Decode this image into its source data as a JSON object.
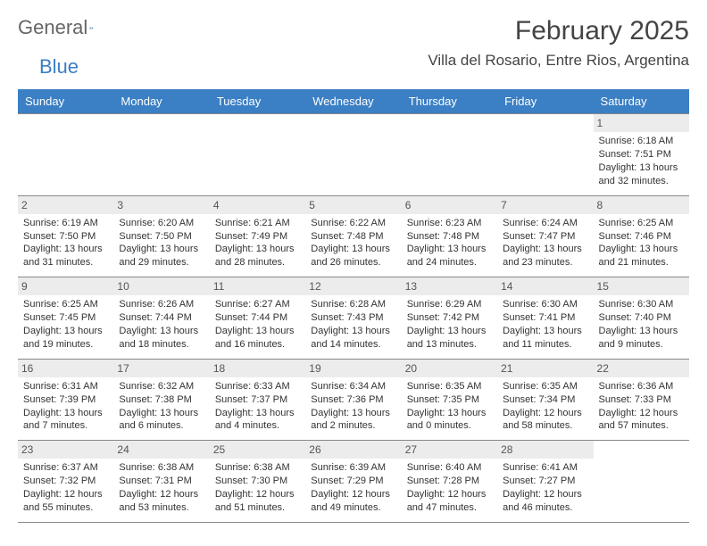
{
  "brand": {
    "name1": "General",
    "name2": "Blue",
    "accent": "#3b7fc4",
    "text_color": "#666"
  },
  "title": "February 2025",
  "location": "Villa del Rosario, Entre Rios, Argentina",
  "header_bg": "#3b7fc4",
  "daynum_bg": "#ececec",
  "border_color": "#888888",
  "dow": [
    "Sunday",
    "Monday",
    "Tuesday",
    "Wednesday",
    "Thursday",
    "Friday",
    "Saturday"
  ],
  "weeks": [
    [
      {
        "n": "",
        "empty": true
      },
      {
        "n": "",
        "empty": true
      },
      {
        "n": "",
        "empty": true
      },
      {
        "n": "",
        "empty": true
      },
      {
        "n": "",
        "empty": true
      },
      {
        "n": "",
        "empty": true
      },
      {
        "n": "1",
        "sr": "Sunrise: 6:18 AM",
        "ss": "Sunset: 7:51 PM",
        "dl": "Daylight: 13 hours and 32 minutes."
      }
    ],
    [
      {
        "n": "2",
        "sr": "Sunrise: 6:19 AM",
        "ss": "Sunset: 7:50 PM",
        "dl": "Daylight: 13 hours and 31 minutes."
      },
      {
        "n": "3",
        "sr": "Sunrise: 6:20 AM",
        "ss": "Sunset: 7:50 PM",
        "dl": "Daylight: 13 hours and 29 minutes."
      },
      {
        "n": "4",
        "sr": "Sunrise: 6:21 AM",
        "ss": "Sunset: 7:49 PM",
        "dl": "Daylight: 13 hours and 28 minutes."
      },
      {
        "n": "5",
        "sr": "Sunrise: 6:22 AM",
        "ss": "Sunset: 7:48 PM",
        "dl": "Daylight: 13 hours and 26 minutes."
      },
      {
        "n": "6",
        "sr": "Sunrise: 6:23 AM",
        "ss": "Sunset: 7:48 PM",
        "dl": "Daylight: 13 hours and 24 minutes."
      },
      {
        "n": "7",
        "sr": "Sunrise: 6:24 AM",
        "ss": "Sunset: 7:47 PM",
        "dl": "Daylight: 13 hours and 23 minutes."
      },
      {
        "n": "8",
        "sr": "Sunrise: 6:25 AM",
        "ss": "Sunset: 7:46 PM",
        "dl": "Daylight: 13 hours and 21 minutes."
      }
    ],
    [
      {
        "n": "9",
        "sr": "Sunrise: 6:25 AM",
        "ss": "Sunset: 7:45 PM",
        "dl": "Daylight: 13 hours and 19 minutes."
      },
      {
        "n": "10",
        "sr": "Sunrise: 6:26 AM",
        "ss": "Sunset: 7:44 PM",
        "dl": "Daylight: 13 hours and 18 minutes."
      },
      {
        "n": "11",
        "sr": "Sunrise: 6:27 AM",
        "ss": "Sunset: 7:44 PM",
        "dl": "Daylight: 13 hours and 16 minutes."
      },
      {
        "n": "12",
        "sr": "Sunrise: 6:28 AM",
        "ss": "Sunset: 7:43 PM",
        "dl": "Daylight: 13 hours and 14 minutes."
      },
      {
        "n": "13",
        "sr": "Sunrise: 6:29 AM",
        "ss": "Sunset: 7:42 PM",
        "dl": "Daylight: 13 hours and 13 minutes."
      },
      {
        "n": "14",
        "sr": "Sunrise: 6:30 AM",
        "ss": "Sunset: 7:41 PM",
        "dl": "Daylight: 13 hours and 11 minutes."
      },
      {
        "n": "15",
        "sr": "Sunrise: 6:30 AM",
        "ss": "Sunset: 7:40 PM",
        "dl": "Daylight: 13 hours and 9 minutes."
      }
    ],
    [
      {
        "n": "16",
        "sr": "Sunrise: 6:31 AM",
        "ss": "Sunset: 7:39 PM",
        "dl": "Daylight: 13 hours and 7 minutes."
      },
      {
        "n": "17",
        "sr": "Sunrise: 6:32 AM",
        "ss": "Sunset: 7:38 PM",
        "dl": "Daylight: 13 hours and 6 minutes."
      },
      {
        "n": "18",
        "sr": "Sunrise: 6:33 AM",
        "ss": "Sunset: 7:37 PM",
        "dl": "Daylight: 13 hours and 4 minutes."
      },
      {
        "n": "19",
        "sr": "Sunrise: 6:34 AM",
        "ss": "Sunset: 7:36 PM",
        "dl": "Daylight: 13 hours and 2 minutes."
      },
      {
        "n": "20",
        "sr": "Sunrise: 6:35 AM",
        "ss": "Sunset: 7:35 PM",
        "dl": "Daylight: 13 hours and 0 minutes."
      },
      {
        "n": "21",
        "sr": "Sunrise: 6:35 AM",
        "ss": "Sunset: 7:34 PM",
        "dl": "Daylight: 12 hours and 58 minutes."
      },
      {
        "n": "22",
        "sr": "Sunrise: 6:36 AM",
        "ss": "Sunset: 7:33 PM",
        "dl": "Daylight: 12 hours and 57 minutes."
      }
    ],
    [
      {
        "n": "23",
        "sr": "Sunrise: 6:37 AM",
        "ss": "Sunset: 7:32 PM",
        "dl": "Daylight: 12 hours and 55 minutes."
      },
      {
        "n": "24",
        "sr": "Sunrise: 6:38 AM",
        "ss": "Sunset: 7:31 PM",
        "dl": "Daylight: 12 hours and 53 minutes."
      },
      {
        "n": "25",
        "sr": "Sunrise: 6:38 AM",
        "ss": "Sunset: 7:30 PM",
        "dl": "Daylight: 12 hours and 51 minutes."
      },
      {
        "n": "26",
        "sr": "Sunrise: 6:39 AM",
        "ss": "Sunset: 7:29 PM",
        "dl": "Daylight: 12 hours and 49 minutes."
      },
      {
        "n": "27",
        "sr": "Sunrise: 6:40 AM",
        "ss": "Sunset: 7:28 PM",
        "dl": "Daylight: 12 hours and 47 minutes."
      },
      {
        "n": "28",
        "sr": "Sunrise: 6:41 AM",
        "ss": "Sunset: 7:27 PM",
        "dl": "Daylight: 12 hours and 46 minutes."
      },
      {
        "n": "",
        "empty": true
      }
    ]
  ]
}
